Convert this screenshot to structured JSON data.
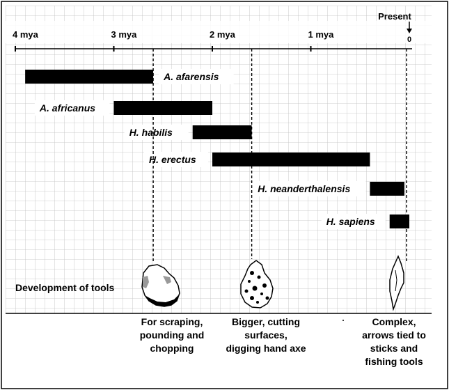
{
  "axis": {
    "present_label": "Present",
    "zero_label": "0",
    "ticks": [
      {
        "value": 4,
        "label": "4 mya"
      },
      {
        "value": 3,
        "label": "3 mya"
      },
      {
        "value": 2,
        "label": "2 mya"
      },
      {
        "value": 1,
        "label": "1 mya"
      }
    ],
    "range": [
      4,
      0
    ]
  },
  "species": [
    {
      "name": "A. afarensis",
      "start": 3.9,
      "end": 2.6,
      "label_side": "right"
    },
    {
      "name": "A. africanus",
      "start": 3.0,
      "end": 2.0,
      "label_side": "left"
    },
    {
      "name": "H. habilis",
      "start": 2.2,
      "end": 1.6,
      "label_side": "left"
    },
    {
      "name": "H. erectus",
      "start": 2.0,
      "end": 0.4,
      "label_side": "left"
    },
    {
      "name": "H. neanderthalensis",
      "start": 0.4,
      "end": 0.05,
      "label_side": "left"
    },
    {
      "name": "H. sapiens",
      "start": 0.2,
      "end": 0.0,
      "label_side": "left"
    }
  ],
  "tools": {
    "title": "Development of tools",
    "items": [
      {
        "at": 2.6,
        "lines": [
          "For scraping,",
          "pounding and",
          "chopping"
        ],
        "icon": "stone-chopper-icon"
      },
      {
        "at": 1.6,
        "lines": [
          "Bigger, cutting",
          "surfaces,",
          "digging hand axe"
        ],
        "icon": "hand-axe-icon"
      },
      {
        "at": 0.03,
        "lines": [
          "Complex,",
          "arrows tied to",
          "sticks and",
          "fishing tools"
        ],
        "icon": "arrowhead-icon"
      }
    ]
  }
}
